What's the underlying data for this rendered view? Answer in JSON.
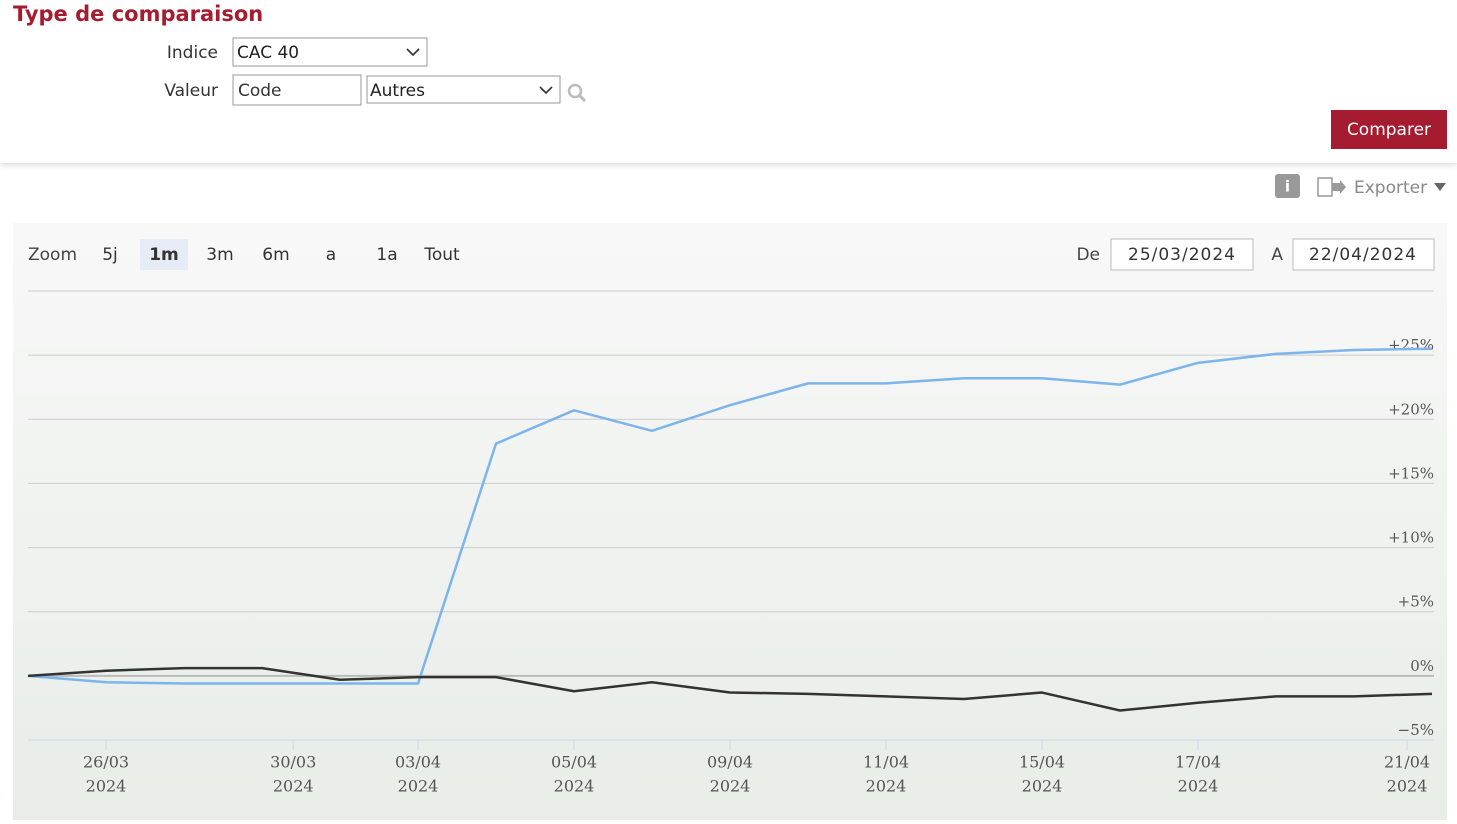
{
  "form": {
    "title": "Type de comparaison",
    "index_label": "Indice",
    "index_value": "CAC 40",
    "value_label": "Valeur",
    "code_placeholder": "Code",
    "other_value": "Autres",
    "button": "Comparer",
    "export": "Exporter"
  },
  "range_selector": {
    "zoom_label": "Zoom",
    "buttons": [
      "5j",
      "1m",
      "3m",
      "6m",
      "a",
      "1a",
      "Tout"
    ],
    "selected": 1,
    "from_label": "De",
    "from": "25/03/2024",
    "to_label": "A",
    "to": "22/04/2024"
  },
  "chart_data": {
    "type": "line",
    "x": [
      0,
      1,
      2,
      3,
      4,
      5,
      6,
      7,
      8,
      9,
      10,
      11,
      12,
      13,
      14,
      15,
      16,
      17,
      18
    ],
    "xlim": [
      0,
      18
    ],
    "xticks": [
      {
        "value": 1,
        "label": "26/03",
        "year": "2024"
      },
      {
        "value": 3.4,
        "label": "30/03",
        "year": "2024"
      },
      {
        "value": 5,
        "label": "03/04",
        "year": "2024"
      },
      {
        "value": 7,
        "label": "05/04",
        "year": "2024"
      },
      {
        "value": 9,
        "label": "09/04",
        "year": "2024"
      },
      {
        "value": 11,
        "label": "11/04",
        "year": "2024"
      },
      {
        "value": 13,
        "label": "15/04",
        "year": "2024"
      },
      {
        "value": 15,
        "label": "17/04",
        "year": "2024"
      },
      {
        "value": 17.68,
        "label": "21/04",
        "year": "2024"
      }
    ],
    "series": [
      {
        "color": "#7cb5ec",
        "values": [
          0,
          -0.5,
          -0.6,
          -0.6,
          -0.6,
          -0.6,
          18.1,
          20.7,
          19.1,
          21.1,
          22.8,
          22.8,
          23.2,
          23.2,
          22.7,
          24.4,
          25.1,
          25.4,
          25.5
        ]
      },
      {
        "color": "#333333",
        "values": [
          0,
          0.4,
          0.6,
          0.6,
          -0.3,
          -0.1,
          -0.1,
          -1.2,
          -0.5,
          -1.3,
          -1.4,
          -1.6,
          -1.8,
          -1.3,
          -2.7,
          -2.1,
          -1.6,
          -1.6,
          -1.4
        ]
      }
    ],
    "ylim": [
      -5,
      30
    ],
    "yticks": [
      {
        "value": -5,
        "label": "−5%"
      },
      {
        "value": 0,
        "label": "0%"
      },
      {
        "value": 5,
        "label": "+5%"
      },
      {
        "value": 10,
        "label": "+10%"
      },
      {
        "value": 15,
        "label": "+15%"
      },
      {
        "value": 20,
        "label": "+20%"
      },
      {
        "value": 25,
        "label": "+25%"
      }
    ],
    "grid": true
  }
}
